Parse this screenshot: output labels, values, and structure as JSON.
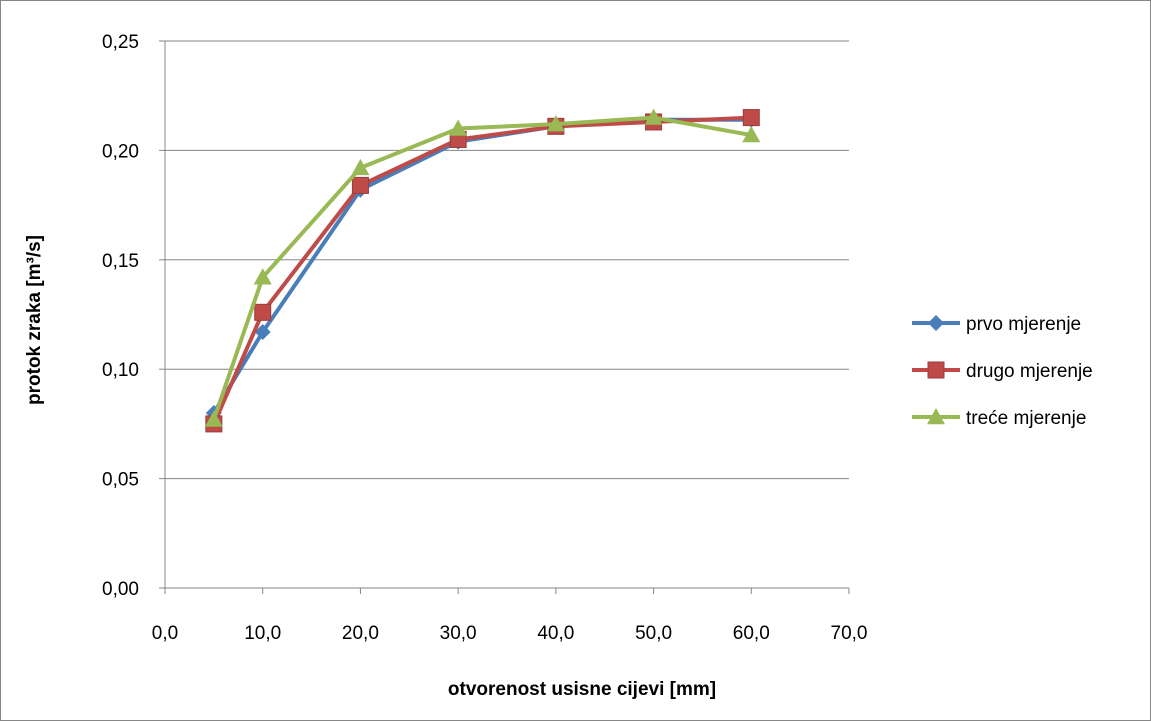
{
  "chart_data": {
    "type": "line",
    "title": "",
    "xlabel": "otvorenost usisne cijevi [mm]",
    "ylabel": "protok zraka [m³/s]",
    "xlim": [
      0,
      70
    ],
    "ylim": [
      0,
      0.25
    ],
    "x_ticks": [
      "0,0",
      "10,0",
      "20,0",
      "30,0",
      "40,0",
      "50,0",
      "60,0",
      "70,0"
    ],
    "y_ticks": [
      "0,00",
      "0,05",
      "0,10",
      "0,15",
      "0,20",
      "0,25"
    ],
    "grid": "horizontal",
    "legend_position": "right",
    "series": [
      {
        "name": "prvo mjerenje",
        "color": "#4a7ebb",
        "marker": "diamond",
        "x": [
          5,
          10,
          20,
          30,
          40,
          50,
          60
        ],
        "y": [
          0.08,
          0.117,
          0.182,
          0.204,
          0.211,
          0.214,
          0.214
        ]
      },
      {
        "name": "drugo mjerenje",
        "color": "#be4b48",
        "marker": "square",
        "x": [
          5,
          10,
          20,
          30,
          40,
          50,
          60
        ],
        "y": [
          0.075,
          0.126,
          0.184,
          0.205,
          0.211,
          0.213,
          0.215
        ]
      },
      {
        "name": "treće mjerenje",
        "color": "#98b954",
        "marker": "triangle",
        "x": [
          5,
          10,
          20,
          30,
          40,
          50,
          60
        ],
        "y": [
          0.077,
          0.142,
          0.192,
          0.21,
          0.212,
          0.215,
          0.207
        ]
      }
    ]
  }
}
